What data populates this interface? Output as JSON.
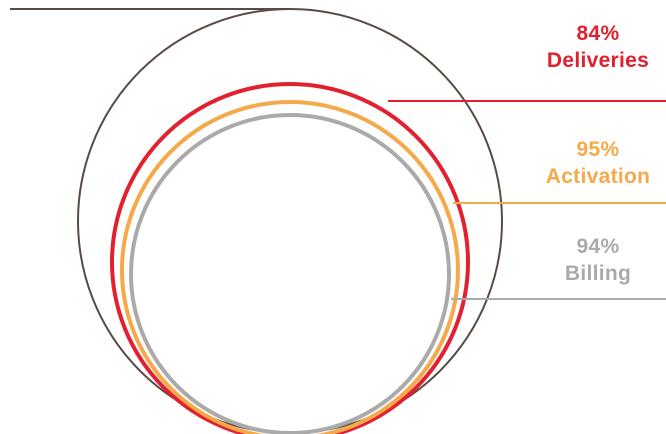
{
  "colors": {
    "outer": "#5a4a45",
    "deliveries": "#e2202f",
    "activation": "#f6a94a",
    "billing": "#aaaaaa"
  },
  "metrics": [
    {
      "id": "deliveries",
      "percent_label": "84%",
      "name": "Deliveries",
      "value": 84,
      "color": "#e2202f"
    },
    {
      "id": "activation",
      "percent_label": "95%",
      "name": "Activation",
      "value": 95,
      "color": "#f6a94a"
    },
    {
      "id": "billing",
      "percent_label": "94%",
      "name": "Billing",
      "value": 94,
      "color": "#aaaaaa"
    }
  ]
}
